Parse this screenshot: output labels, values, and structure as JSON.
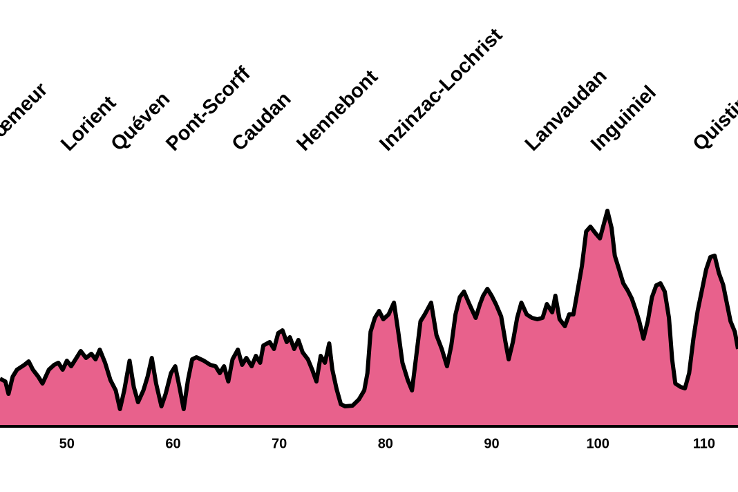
{
  "chart_data": {
    "type": "area",
    "color": "#e8618c",
    "line_color": "#000000",
    "xlim": [
      43.7,
      113.2
    ],
    "ylim": [
      0,
      400
    ],
    "xticks": [
      50,
      60,
      70,
      80,
      90,
      100,
      110
    ],
    "grid": false,
    "towns": [
      {
        "name": "Plœmeur",
        "km": 42.5
      },
      {
        "name": "Lorient",
        "km": 50.2
      },
      {
        "name": "Quéven",
        "km": 54.9
      },
      {
        "name": "Pont-Scorff",
        "km": 60.1
      },
      {
        "name": "Caudan",
        "km": 66.3
      },
      {
        "name": "Hennebont",
        "km": 72.4
      },
      {
        "name": "Inzinzac-Lochrist",
        "km": 80.2
      },
      {
        "name": "Lanvaudan",
        "km": 93.9
      },
      {
        "name": "Inguiniel",
        "km": 100.1
      },
      {
        "name": "Quistinic",
        "km": 109.7
      }
    ],
    "x": [
      43.7,
      44.2,
      44.5,
      44.9,
      45.3,
      46.0,
      46.4,
      46.8,
      47.3,
      47.7,
      48.3,
      48.8,
      49.2,
      49.6,
      50.0,
      50.4,
      50.9,
      51.3,
      51.8,
      52.3,
      52.7,
      53.1,
      53.6,
      54.1,
      54.6,
      55.0,
      55.4,
      55.9,
      56.3,
      56.7,
      57.2,
      57.6,
      58.0,
      58.4,
      58.9,
      59.3,
      59.8,
      60.2,
      60.6,
      61.0,
      61.4,
      61.8,
      62.2,
      62.9,
      63.5,
      64.0,
      64.4,
      64.8,
      65.2,
      65.6,
      66.1,
      66.5,
      66.9,
      67.4,
      67.8,
      68.2,
      68.5,
      69.1,
      69.5,
      69.9,
      70.3,
      70.7,
      71.0,
      71.4,
      71.8,
      72.2,
      72.7,
      73.1,
      73.5,
      73.9,
      74.3,
      74.7,
      75.0,
      75.4,
      75.8,
      76.2,
      76.9,
      77.5,
      78.0,
      78.3,
      78.6,
      79.0,
      79.4,
      79.8,
      80.3,
      80.8,
      81.2,
      81.6,
      82.1,
      82.5,
      82.9,
      83.3,
      83.7,
      84.3,
      84.8,
      85.3,
      85.8,
      86.2,
      86.6,
      87.0,
      87.4,
      87.9,
      88.5,
      88.9,
      89.2,
      89.6,
      90.0,
      90.4,
      90.9,
      91.3,
      91.6,
      92.0,
      92.4,
      92.8,
      93.3,
      93.8,
      94.3,
      94.8,
      95.2,
      95.7,
      96.0,
      96.4,
      96.9,
      97.3,
      97.7,
      98.1,
      98.5,
      98.9,
      99.3,
      99.8,
      100.2,
      100.6,
      100.9,
      101.3,
      101.6,
      102.0,
      102.4,
      102.8,
      103.2,
      103.6,
      103.9,
      104.3,
      104.7,
      105.1,
      105.5,
      105.9,
      106.3,
      106.7,
      107.0,
      107.3,
      107.8,
      108.2,
      108.6,
      109.0,
      109.4,
      109.8,
      110.2,
      110.6,
      111.0,
      111.4,
      111.8,
      112.1,
      112.5,
      112.9,
      113.2
    ],
    "values": [
      69,
      65,
      47,
      72,
      82,
      89,
      94,
      82,
      72,
      62,
      82,
      89,
      92,
      82,
      95,
      87,
      99,
      109,
      99,
      105,
      97,
      111,
      92,
      67,
      52,
      25,
      52,
      95,
      57,
      35,
      52,
      72,
      99,
      62,
      29,
      47,
      77,
      87,
      57,
      25,
      67,
      97,
      100,
      95,
      89,
      87,
      77,
      87,
      65,
      97,
      111,
      89,
      99,
      87,
      102,
      92,
      117,
      122,
      112,
      135,
      139,
      122,
      129,
      112,
      125,
      107,
      97,
      82,
      65,
      102,
      92,
      120,
      82,
      54,
      32,
      29,
      30,
      39,
      52,
      77,
      137,
      157,
      167,
      155,
      162,
      179,
      137,
      92,
      67,
      52,
      102,
      152,
      162,
      179,
      132,
      112,
      87,
      117,
      162,
      187,
      195,
      177,
      157,
      177,
      189,
      199,
      189,
      177,
      159,
      122,
      97,
      122,
      157,
      179,
      162,
      157,
      155,
      157,
      177,
      165,
      189,
      155,
      145,
      162,
      162,
      197,
      232,
      282,
      289,
      279,
      272,
      295,
      312,
      287,
      247,
      227,
      207,
      197,
      185,
      167,
      152,
      127,
      152,
      187,
      204,
      207,
      195,
      157,
      97,
      62,
      57,
      55,
      77,
      127,
      167,
      197,
      227,
      245,
      247,
      222,
      205,
      182,
      152,
      137,
      112
    ]
  }
}
